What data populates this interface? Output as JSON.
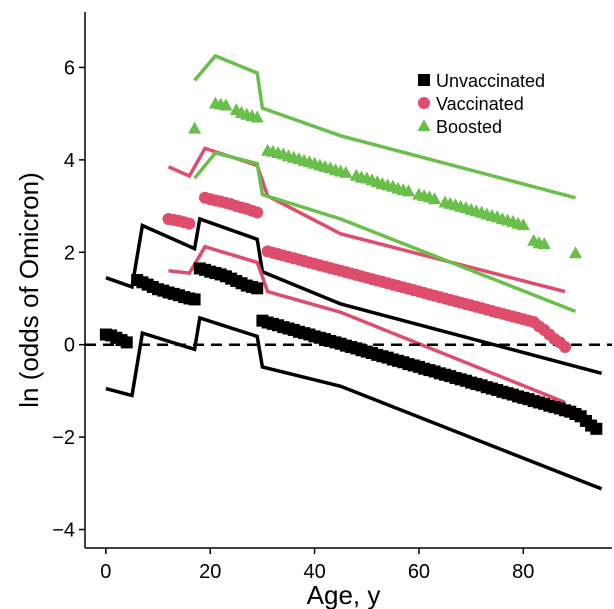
{
  "chart_data": {
    "type": "scatter",
    "title": "",
    "xlabel": "Age, y",
    "ylabel": "ln (odds of Omicron)",
    "xlim": [
      -4,
      97
    ],
    "ylim": [
      -4.4,
      7.2
    ],
    "xticks": [
      0,
      20,
      40,
      60,
      80
    ],
    "yticks": [
      -4,
      -2,
      0,
      2,
      4,
      6
    ],
    "reference_line": {
      "y": 0,
      "style": "dashed"
    },
    "grid": false,
    "legend_position": "top-right",
    "series": [
      {
        "name": "Unvaccinated",
        "color": "#000000",
        "marker": "square",
        "points": [
          [
            0,
            0.22
          ],
          [
            1,
            0.2
          ],
          [
            2,
            0.15
          ],
          [
            3,
            0.1
          ],
          [
            4,
            0.05
          ],
          [
            6,
            1.4
          ],
          [
            7,
            1.35
          ],
          [
            8,
            1.3
          ],
          [
            9,
            1.25
          ],
          [
            10,
            1.2
          ],
          [
            11,
            1.17
          ],
          [
            12,
            1.13
          ],
          [
            13,
            1.1
          ],
          [
            14,
            1.07
          ],
          [
            15,
            1.03
          ],
          [
            16,
            1.0
          ],
          [
            17,
            0.98
          ],
          [
            18,
            1.65
          ],
          [
            19,
            1.62
          ],
          [
            20,
            1.58
          ],
          [
            21,
            1.55
          ],
          [
            22,
            1.52
          ],
          [
            23,
            1.48
          ],
          [
            24,
            1.43
          ],
          [
            25,
            1.38
          ],
          [
            26,
            1.33
          ],
          [
            27,
            1.28
          ],
          [
            28,
            1.25
          ],
          [
            29,
            1.22
          ],
          [
            30,
            0.52
          ],
          [
            31,
            0.48
          ],
          [
            32,
            0.45
          ],
          [
            33,
            0.42
          ],
          [
            34,
            0.38
          ],
          [
            35,
            0.35
          ],
          [
            36,
            0.32
          ],
          [
            37,
            0.28
          ],
          [
            38,
            0.25
          ],
          [
            39,
            0.22
          ],
          [
            40,
            0.18
          ],
          [
            41,
            0.15
          ],
          [
            42,
            0.12
          ],
          [
            43,
            0.08
          ],
          [
            44,
            0.05
          ],
          [
            45,
            0.02
          ],
          [
            46,
            -0.02
          ],
          [
            47,
            -0.05
          ],
          [
            48,
            -0.08
          ],
          [
            49,
            -0.12
          ],
          [
            50,
            -0.15
          ],
          [
            51,
            -0.18
          ],
          [
            52,
            -0.22
          ],
          [
            53,
            -0.25
          ],
          [
            54,
            -0.28
          ],
          [
            55,
            -0.32
          ],
          [
            56,
            -0.35
          ],
          [
            57,
            -0.38
          ],
          [
            58,
            -0.42
          ],
          [
            59,
            -0.45
          ],
          [
            60,
            -0.48
          ],
          [
            61,
            -0.52
          ],
          [
            62,
            -0.55
          ],
          [
            63,
            -0.58
          ],
          [
            64,
            -0.62
          ],
          [
            65,
            -0.65
          ],
          [
            66,
            -0.68
          ],
          [
            67,
            -0.72
          ],
          [
            68,
            -0.75
          ],
          [
            69,
            -0.78
          ],
          [
            70,
            -0.82
          ],
          [
            71,
            -0.85
          ],
          [
            72,
            -0.88
          ],
          [
            73,
            -0.92
          ],
          [
            74,
            -0.95
          ],
          [
            75,
            -0.98
          ],
          [
            76,
            -1.02
          ],
          [
            77,
            -1.05
          ],
          [
            78,
            -1.08
          ],
          [
            79,
            -1.12
          ],
          [
            80,
            -1.15
          ],
          [
            81,
            -1.18
          ],
          [
            82,
            -1.22
          ],
          [
            83,
            -1.25
          ],
          [
            84,
            -1.28
          ],
          [
            85,
            -1.32
          ],
          [
            86,
            -1.35
          ],
          [
            87,
            -1.38
          ],
          [
            88,
            -1.42
          ],
          [
            89,
            -1.45
          ],
          [
            90,
            -1.5
          ],
          [
            91,
            -1.55
          ],
          [
            92,
            -1.65
          ],
          [
            93,
            -1.75
          ],
          [
            94,
            -1.82
          ]
        ],
        "ci_upper": [
          [
            0,
            1.45
          ],
          [
            5,
            1.25
          ],
          [
            7,
            2.58
          ],
          [
            17,
            2.08
          ],
          [
            18,
            2.72
          ],
          [
            29,
            2.28
          ],
          [
            30,
            1.58
          ],
          [
            45,
            0.88
          ],
          [
            95,
            -0.62
          ]
        ],
        "ci_lower": [
          [
            0,
            -0.95
          ],
          [
            5,
            -1.1
          ],
          [
            7,
            0.25
          ],
          [
            17,
            -0.1
          ],
          [
            18,
            0.58
          ],
          [
            29,
            0.18
          ],
          [
            30,
            -0.48
          ],
          [
            45,
            -0.9
          ],
          [
            95,
            -3.12
          ]
        ]
      },
      {
        "name": "Vaccinated",
        "color": "#de4d6c",
        "marker": "circle",
        "points": [
          [
            12,
            2.72
          ],
          [
            13,
            2.7
          ],
          [
            14,
            2.68
          ],
          [
            15,
            2.65
          ],
          [
            16,
            2.62
          ],
          [
            19,
            3.18
          ],
          [
            20,
            3.15
          ],
          [
            21,
            3.12
          ],
          [
            22,
            3.1
          ],
          [
            23,
            3.07
          ],
          [
            24,
            3.04
          ],
          [
            25,
            3.0
          ],
          [
            26,
            2.97
          ],
          [
            27,
            2.94
          ],
          [
            28,
            2.9
          ],
          [
            29,
            2.86
          ],
          [
            31,
            2.02
          ],
          [
            32,
            1.99
          ],
          [
            33,
            1.96
          ],
          [
            34,
            1.93
          ],
          [
            35,
            1.9
          ],
          [
            36,
            1.87
          ],
          [
            37,
            1.84
          ],
          [
            38,
            1.81
          ],
          [
            39,
            1.78
          ],
          [
            40,
            1.75
          ],
          [
            41,
            1.72
          ],
          [
            42,
            1.69
          ],
          [
            43,
            1.66
          ],
          [
            44,
            1.63
          ],
          [
            45,
            1.6
          ],
          [
            46,
            1.57
          ],
          [
            47,
            1.54
          ],
          [
            48,
            1.51
          ],
          [
            49,
            1.48
          ],
          [
            50,
            1.45
          ],
          [
            51,
            1.42
          ],
          [
            52,
            1.39
          ],
          [
            53,
            1.36
          ],
          [
            54,
            1.33
          ],
          [
            55,
            1.3
          ],
          [
            56,
            1.27
          ],
          [
            57,
            1.24
          ],
          [
            58,
            1.21
          ],
          [
            59,
            1.18
          ],
          [
            60,
            1.15
          ],
          [
            61,
            1.12
          ],
          [
            62,
            1.09
          ],
          [
            63,
            1.06
          ],
          [
            64,
            1.03
          ],
          [
            65,
            1.0
          ],
          [
            66,
            0.97
          ],
          [
            67,
            0.94
          ],
          [
            68,
            0.91
          ],
          [
            69,
            0.88
          ],
          [
            70,
            0.85
          ],
          [
            71,
            0.82
          ],
          [
            72,
            0.79
          ],
          [
            73,
            0.76
          ],
          [
            74,
            0.73
          ],
          [
            75,
            0.7
          ],
          [
            76,
            0.67
          ],
          [
            77,
            0.64
          ],
          [
            78,
            0.61
          ],
          [
            79,
            0.58
          ],
          [
            80,
            0.55
          ],
          [
            81,
            0.52
          ],
          [
            82,
            0.49
          ],
          [
            83,
            0.4
          ],
          [
            84,
            0.32
          ],
          [
            85,
            0.22
          ],
          [
            86,
            0.12
          ],
          [
            87,
            0.05
          ],
          [
            88,
            -0.05
          ]
        ],
        "ci_upper": [
          [
            12,
            3.85
          ],
          [
            16,
            3.65
          ],
          [
            19,
            4.25
          ],
          [
            29,
            3.88
          ],
          [
            31,
            3.22
          ],
          [
            45,
            2.4
          ],
          [
            88,
            1.15
          ]
        ],
        "ci_lower": [
          [
            12,
            1.6
          ],
          [
            16,
            1.55
          ],
          [
            19,
            2.12
          ],
          [
            29,
            1.78
          ],
          [
            31,
            1.15
          ],
          [
            45,
            0.7
          ],
          [
            88,
            -1.25
          ]
        ]
      },
      {
        "name": "Boosted",
        "color": "#6abf4b",
        "marker": "triangle",
        "points": [
          [
            17,
            4.68
          ],
          [
            21,
            5.22
          ],
          [
            22,
            5.2
          ],
          [
            23,
            5.18
          ],
          [
            25,
            5.08
          ],
          [
            26,
            5.02
          ],
          [
            27,
            4.98
          ],
          [
            28,
            4.95
          ],
          [
            29,
            4.92
          ],
          [
            31,
            4.2
          ],
          [
            32,
            4.18
          ],
          [
            33,
            4.15
          ],
          [
            34,
            4.12
          ],
          [
            35,
            4.08
          ],
          [
            36,
            4.05
          ],
          [
            37,
            4.02
          ],
          [
            38,
            3.98
          ],
          [
            39,
            3.95
          ],
          [
            40,
            3.92
          ],
          [
            41,
            3.88
          ],
          [
            42,
            3.85
          ],
          [
            43,
            3.82
          ],
          [
            44,
            3.78
          ],
          [
            45,
            3.75
          ],
          [
            46,
            3.72
          ],
          [
            48,
            3.66
          ],
          [
            49,
            3.62
          ],
          [
            50,
            3.6
          ],
          [
            51,
            3.56
          ],
          [
            52,
            3.52
          ],
          [
            53,
            3.48
          ],
          [
            54,
            3.45
          ],
          [
            55,
            3.42
          ],
          [
            56,
            3.38
          ],
          [
            57,
            3.35
          ],
          [
            58,
            3.32
          ],
          [
            60,
            3.25
          ],
          [
            61,
            3.22
          ],
          [
            62,
            3.19
          ],
          [
            63,
            3.15
          ],
          [
            65,
            3.08
          ],
          [
            66,
            3.05
          ],
          [
            67,
            3.02
          ],
          [
            68,
            2.99
          ],
          [
            69,
            2.96
          ],
          [
            70,
            2.92
          ],
          [
            71,
            2.89
          ],
          [
            72,
            2.86
          ],
          [
            73,
            2.82
          ],
          [
            74,
            2.79
          ],
          [
            75,
            2.76
          ],
          [
            76,
            2.72
          ],
          [
            77,
            2.69
          ],
          [
            78,
            2.66
          ],
          [
            79,
            2.62
          ],
          [
            80,
            2.59
          ],
          [
            82,
            2.25
          ],
          [
            83,
            2.2
          ],
          [
            84,
            2.18
          ],
          [
            90,
            1.98
          ]
        ],
        "ci_upper": [
          [
            17,
            5.72
          ],
          [
            21,
            6.25
          ],
          [
            29,
            5.88
          ],
          [
            30,
            5.12
          ],
          [
            45,
            4.52
          ],
          [
            90,
            3.18
          ]
        ],
        "ci_lower": [
          [
            17,
            3.6
          ],
          [
            21,
            4.15
          ],
          [
            29,
            3.92
          ],
          [
            30,
            3.25
          ],
          [
            45,
            2.72
          ],
          [
            90,
            0.72
          ]
        ]
      }
    ]
  }
}
